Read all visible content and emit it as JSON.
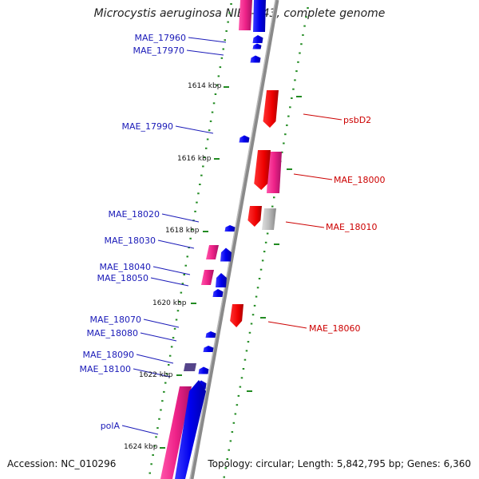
{
  "title": "Microcystis aeruginosa NIES-843, complete genome",
  "footer": {
    "accession": "Accession: NC_010296",
    "info": "Topology: circular; Length: 5,842,795 bp; Genes: 6,360"
  },
  "scale_labels": [
    "1614 kbp",
    "1616 kbp",
    "1618 kbp",
    "1620 kbp",
    "1622 kbp",
    "1624 kbp"
  ],
  "gene_labels_left": [
    "MAE_17960",
    "MAE_17970",
    "MAE_17990",
    "MAE_18020",
    "MAE_18030",
    "MAE_18040",
    "MAE_18050",
    "MAE_18070",
    "MAE_18080",
    "MAE_18090",
    "MAE_18100",
    "polA"
  ],
  "gene_labels_right": [
    "psbD2",
    "MAE_18000",
    "MAE_18010",
    "MAE_18060"
  ],
  "colors": {
    "backbone": "#888888",
    "scale_dots": "#228b22",
    "left_label": "#1a1ab8",
    "right_label": "#cc0000",
    "gene_blue": "#0000ee",
    "gene_red": "#ee0000",
    "gene_pink": "#ee2288",
    "gene_gray": "#aaaaaa",
    "gene_purple": "#55448a"
  }
}
